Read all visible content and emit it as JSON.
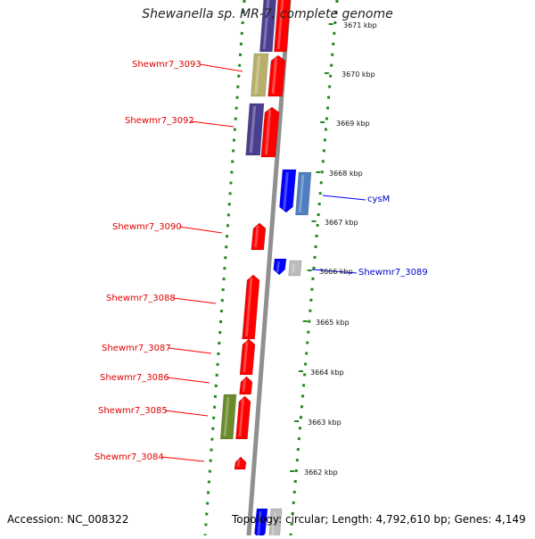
{
  "title": "Shewanella sp. MR-7, complete genome",
  "accession": "Accession: NC_008322",
  "summary": "Topology: circular; Length: 4,792,610 bp; Genes: 4,149",
  "colors": {
    "forward": "#ff0000",
    "reverse": "#0000ff",
    "navy": "#4a3f8f",
    "khaki": "#b8b06a",
    "steel": "#4f7fbf",
    "grey": "#bbbbbb",
    "olive": "#6b8a2a",
    "backbone": "#909090",
    "divider": "#228822"
  },
  "scale_ticks": [
    {
      "label": "3671 kbp",
      "kbp": 3671,
      "partial": true
    },
    {
      "label": "3670 kbp",
      "kbp": 3670
    },
    {
      "label": "3669 kbp",
      "kbp": 3669
    },
    {
      "label": "3668 kbp",
      "kbp": 3668
    },
    {
      "label": "3667 kbp",
      "kbp": 3667
    },
    {
      "label": "3666 kbp",
      "kbp": 3666
    },
    {
      "label": "3665 kbp",
      "kbp": 3665
    },
    {
      "label": "3664 kbp",
      "kbp": 3664
    },
    {
      "label": "3663 kbp",
      "kbp": 3663
    },
    {
      "label": "3662 kbp",
      "kbp": 3662
    }
  ],
  "genes": [
    {
      "name": "Shewmr7_3093",
      "strand": "left"
    },
    {
      "name": "Shewmr7_3092",
      "strand": "left"
    },
    {
      "name": "Shewmr7_3090",
      "strand": "left"
    },
    {
      "name": "Shewmr7_3088",
      "strand": "left"
    },
    {
      "name": "Shewmr7_3087",
      "strand": "left"
    },
    {
      "name": "Shewmr7_3086",
      "strand": "left"
    },
    {
      "name": "Shewmr7_3085",
      "strand": "left"
    },
    {
      "name": "Shewmr7_3084",
      "strand": "left"
    },
    {
      "name": "cysM",
      "strand": "right"
    },
    {
      "name": "Shewmr7_3089",
      "strand": "right"
    }
  ]
}
